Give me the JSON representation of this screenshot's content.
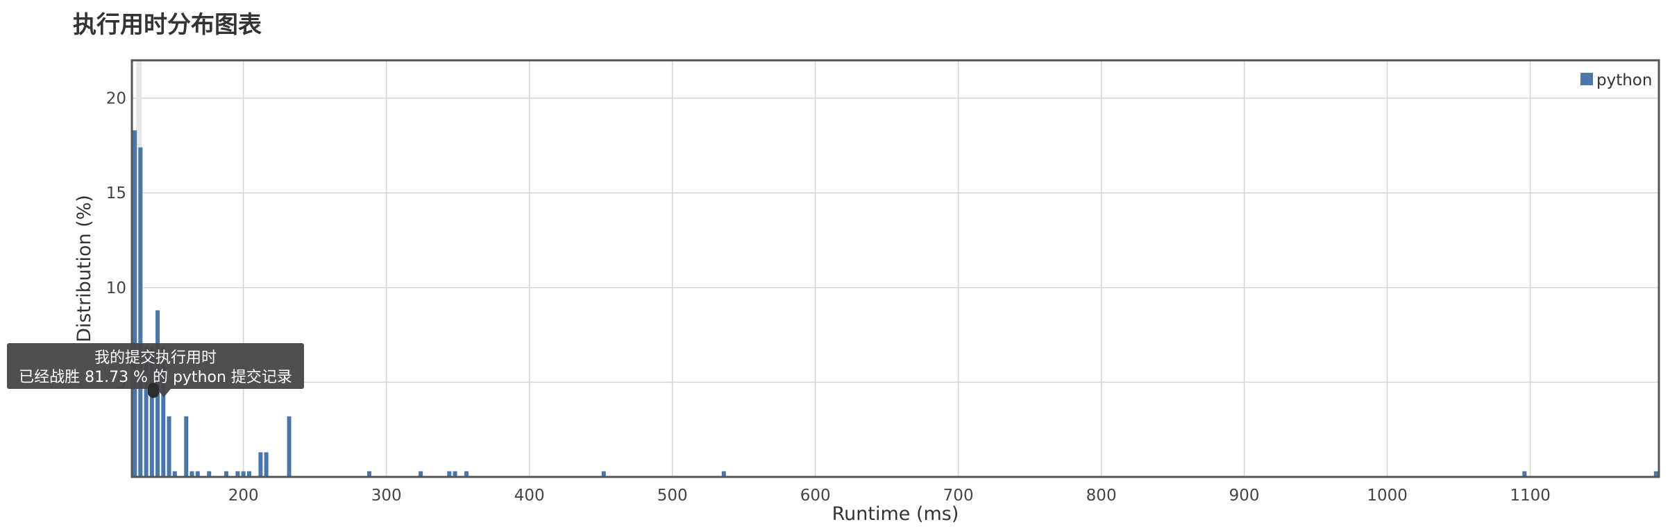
{
  "chart_data": {
    "type": "bar",
    "title": "执行用时分布图表",
    "xlabel": "Runtime (ms)",
    "ylabel": "Distribution (%)",
    "xlim": [
      122,
      1190
    ],
    "ylim": [
      0,
      22
    ],
    "x_ticks": [
      200,
      300,
      400,
      500,
      600,
      700,
      800,
      900,
      1000,
      1100
    ],
    "y_ticks": [
      5,
      10,
      15,
      20
    ],
    "grid": true,
    "legend": {
      "position": "top-right",
      "entries": [
        "python"
      ]
    },
    "highlight_x": 127,
    "series": [
      {
        "name": "python",
        "color": "#4a76a8",
        "points": [
          {
            "x": 124,
            "y": 18.3
          },
          {
            "x": 128,
            "y": 17.4
          },
          {
            "x": 132,
            "y": 6.9
          },
          {
            "x": 136,
            "y": 6.9
          },
          {
            "x": 140,
            "y": 8.8
          },
          {
            "x": 144,
            "y": 6.9
          },
          {
            "x": 148,
            "y": 3.2
          },
          {
            "x": 152,
            "y": 0.3
          },
          {
            "x": 160,
            "y": 3.2
          },
          {
            "x": 164,
            "y": 0.3
          },
          {
            "x": 168,
            "y": 0.3
          },
          {
            "x": 176,
            "y": 0.3
          },
          {
            "x": 188,
            "y": 0.3
          },
          {
            "x": 196,
            "y": 0.3
          },
          {
            "x": 200,
            "y": 0.3
          },
          {
            "x": 204,
            "y": 0.3
          },
          {
            "x": 212,
            "y": 1.3
          },
          {
            "x": 216,
            "y": 1.3
          },
          {
            "x": 232,
            "y": 3.2
          },
          {
            "x": 288,
            "y": 0.3
          },
          {
            "x": 324,
            "y": 0.3
          },
          {
            "x": 344,
            "y": 0.3
          },
          {
            "x": 348,
            "y": 0.3
          },
          {
            "x": 356,
            "y": 0.3
          },
          {
            "x": 452,
            "y": 0.3
          },
          {
            "x": 536,
            "y": 0.3
          },
          {
            "x": 1096,
            "y": 0.3
          },
          {
            "x": 1188,
            "y": 0.3
          }
        ]
      }
    ]
  },
  "tooltip": {
    "line1": "我的提交执行用时",
    "line2": "已经战胜 81.73 % 的 python 提交记录"
  }
}
